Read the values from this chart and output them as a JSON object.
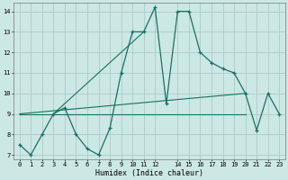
{
  "xlabel": "Humidex (Indice chaleur)",
  "bg_color": "#cce8e4",
  "grid_color": "#aaccca",
  "line_color": "#1a7060",
  "x_values": [
    0,
    1,
    2,
    3,
    4,
    5,
    6,
    7,
    8,
    9,
    10,
    11,
    12,
    13,
    14,
    15,
    16,
    17,
    18,
    19,
    20,
    21,
    22,
    23
  ],
  "main_series": [
    7.5,
    7.0,
    8.0,
    9.0,
    9.3,
    8.0,
    7.3,
    7.0,
    8.3,
    11.0,
    13.0,
    13.0,
    14.2,
    9.5,
    14.0,
    14.0,
    12.0,
    11.5,
    11.2,
    11.0,
    10.0,
    8.2,
    10.0,
    9.0
  ],
  "flat_line_x": [
    0,
    20
  ],
  "flat_line_y": [
    9.0,
    9.0
  ],
  "rising_line_x": [
    0,
    20
  ],
  "rising_line_y": [
    9.0,
    10.0
  ],
  "diag_line_x": [
    3,
    11
  ],
  "diag_line_y": [
    9.0,
    13.0
  ],
  "ylim": [
    6.8,
    14.4
  ],
  "xlim": [
    -0.5,
    23.5
  ],
  "yticks": [
    7,
    8,
    9,
    10,
    11,
    12,
    13,
    14
  ],
  "xticks": [
    0,
    1,
    2,
    3,
    4,
    5,
    6,
    7,
    8,
    9,
    10,
    11,
    12,
    14,
    15,
    16,
    17,
    18,
    19,
    20,
    21,
    22,
    23
  ],
  "xlabel_fontsize": 6.0,
  "tick_fontsize": 5.0
}
